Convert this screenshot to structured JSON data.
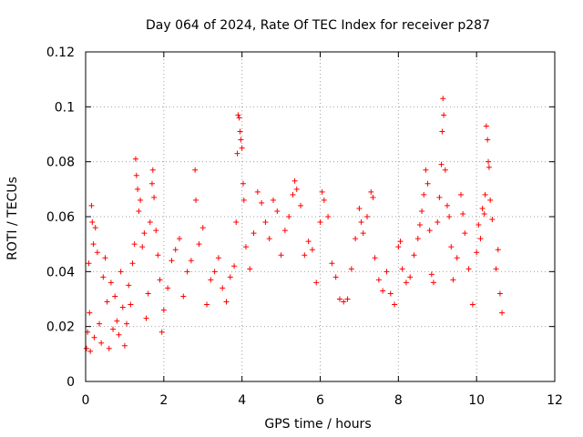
{
  "chart_data": {
    "type": "scatter",
    "title": "Day 064 of 2024, Rate Of TEC Index for receiver p287",
    "xlabel": "GPS time / hours",
    "ylabel": "ROTI / TECUs",
    "xlim": [
      0,
      12
    ],
    "ylim": [
      0,
      0.12
    ],
    "x_ticks": [
      0,
      2,
      4,
      6,
      8,
      10,
      12
    ],
    "y_ticks": [
      0,
      0.02,
      0.04,
      0.06,
      0.08,
      0.1,
      0.12
    ],
    "x_tick_labels": [
      "0",
      "2",
      "4",
      "6",
      "8",
      "10",
      "12"
    ],
    "y_tick_labels": [
      "0",
      "0.02",
      "0.04",
      "0.06",
      "0.08",
      "0.1",
      "0.12"
    ],
    "grid": true,
    "marker": "+",
    "color": "#ff0000",
    "series": [
      {
        "name": "ROTI",
        "points": [
          [
            0.02,
            0.012
          ],
          [
            0.05,
            0.018
          ],
          [
            0.08,
            0.043
          ],
          [
            0.1,
            0.025
          ],
          [
            0.12,
            0.011
          ],
          [
            0.15,
            0.064
          ],
          [
            0.17,
            0.058
          ],
          [
            0.2,
            0.05
          ],
          [
            0.22,
            0.016
          ],
          [
            0.25,
            0.056
          ],
          [
            0.3,
            0.047
          ],
          [
            0.35,
            0.021
          ],
          [
            0.4,
            0.014
          ],
          [
            0.45,
            0.038
          ],
          [
            0.5,
            0.045
          ],
          [
            0.55,
            0.029
          ],
          [
            0.6,
            0.012
          ],
          [
            0.65,
            0.036
          ],
          [
            0.7,
            0.019
          ],
          [
            0.75,
            0.031
          ],
          [
            0.8,
            0.022
          ],
          [
            0.85,
            0.017
          ],
          [
            0.9,
            0.04
          ],
          [
            0.95,
            0.027
          ],
          [
            1.0,
            0.013
          ],
          [
            1.05,
            0.021
          ],
          [
            1.1,
            0.035
          ],
          [
            1.15,
            0.028
          ],
          [
            1.2,
            0.043
          ],
          [
            1.25,
            0.05
          ],
          [
            1.28,
            0.081
          ],
          [
            1.3,
            0.075
          ],
          [
            1.33,
            0.07
          ],
          [
            1.36,
            0.062
          ],
          [
            1.4,
            0.066
          ],
          [
            1.45,
            0.049
          ],
          [
            1.5,
            0.054
          ],
          [
            1.55,
            0.023
          ],
          [
            1.6,
            0.032
          ],
          [
            1.65,
            0.058
          ],
          [
            1.7,
            0.072
          ],
          [
            1.72,
            0.077
          ],
          [
            1.75,
            0.067
          ],
          [
            1.8,
            0.055
          ],
          [
            1.85,
            0.046
          ],
          [
            1.9,
            0.037
          ],
          [
            1.95,
            0.018
          ],
          [
            2.0,
            0.026
          ],
          [
            2.1,
            0.034
          ],
          [
            2.2,
            0.044
          ],
          [
            2.3,
            0.048
          ],
          [
            2.4,
            0.052
          ],
          [
            2.5,
            0.031
          ],
          [
            2.6,
            0.04
          ],
          [
            2.7,
            0.044
          ],
          [
            2.8,
            0.077
          ],
          [
            2.82,
            0.066
          ],
          [
            2.9,
            0.05
          ],
          [
            3.0,
            0.056
          ],
          [
            3.1,
            0.028
          ],
          [
            3.2,
            0.037
          ],
          [
            3.3,
            0.04
          ],
          [
            3.4,
            0.045
          ],
          [
            3.5,
            0.034
          ],
          [
            3.6,
            0.029
          ],
          [
            3.7,
            0.038
          ],
          [
            3.8,
            0.042
          ],
          [
            3.85,
            0.058
          ],
          [
            3.88,
            0.083
          ],
          [
            3.9,
            0.097
          ],
          [
            3.93,
            0.096
          ],
          [
            3.95,
            0.091
          ],
          [
            3.97,
            0.088
          ],
          [
            4.0,
            0.085
          ],
          [
            4.03,
            0.072
          ],
          [
            4.05,
            0.066
          ],
          [
            4.1,
            0.049
          ],
          [
            4.2,
            0.041
          ],
          [
            4.3,
            0.054
          ],
          [
            4.4,
            0.069
          ],
          [
            4.5,
            0.065
          ],
          [
            4.6,
            0.058
          ],
          [
            4.7,
            0.052
          ],
          [
            4.8,
            0.066
          ],
          [
            4.9,
            0.062
          ],
          [
            5.0,
            0.046
          ],
          [
            5.1,
            0.055
          ],
          [
            5.2,
            0.06
          ],
          [
            5.3,
            0.068
          ],
          [
            5.35,
            0.073
          ],
          [
            5.4,
            0.07
          ],
          [
            5.5,
            0.064
          ],
          [
            5.6,
            0.046
          ],
          [
            5.7,
            0.051
          ],
          [
            5.8,
            0.048
          ],
          [
            5.9,
            0.036
          ],
          [
            6.0,
            0.058
          ],
          [
            6.05,
            0.069
          ],
          [
            6.1,
            0.066
          ],
          [
            6.2,
            0.06
          ],
          [
            6.3,
            0.043
          ],
          [
            6.4,
            0.038
          ],
          [
            6.5,
            0.03
          ],
          [
            6.6,
            0.029
          ],
          [
            6.7,
            0.03
          ],
          [
            6.8,
            0.041
          ],
          [
            6.9,
            0.052
          ],
          [
            7.0,
            0.063
          ],
          [
            7.05,
            0.058
          ],
          [
            7.1,
            0.054
          ],
          [
            7.2,
            0.06
          ],
          [
            7.3,
            0.069
          ],
          [
            7.35,
            0.067
          ],
          [
            7.4,
            0.045
          ],
          [
            7.5,
            0.037
          ],
          [
            7.6,
            0.033
          ],
          [
            7.7,
            0.04
          ],
          [
            7.8,
            0.032
          ],
          [
            7.9,
            0.028
          ],
          [
            8.0,
            0.049
          ],
          [
            8.05,
            0.051
          ],
          [
            8.1,
            0.041
          ],
          [
            8.2,
            0.036
          ],
          [
            8.3,
            0.038
          ],
          [
            8.4,
            0.046
          ],
          [
            8.5,
            0.052
          ],
          [
            8.55,
            0.057
          ],
          [
            8.6,
            0.062
          ],
          [
            8.65,
            0.068
          ],
          [
            8.7,
            0.077
          ],
          [
            8.75,
            0.072
          ],
          [
            8.8,
            0.055
          ],
          [
            8.85,
            0.039
          ],
          [
            8.9,
            0.036
          ],
          [
            9.0,
            0.058
          ],
          [
            9.05,
            0.067
          ],
          [
            9.1,
            0.079
          ],
          [
            9.12,
            0.091
          ],
          [
            9.14,
            0.103
          ],
          [
            9.16,
            0.097
          ],
          [
            9.2,
            0.077
          ],
          [
            9.25,
            0.064
          ],
          [
            9.3,
            0.06
          ],
          [
            9.35,
            0.049
          ],
          [
            9.4,
            0.037
          ],
          [
            9.5,
            0.045
          ],
          [
            9.6,
            0.068
          ],
          [
            9.65,
            0.061
          ],
          [
            9.7,
            0.054
          ],
          [
            9.8,
            0.041
          ],
          [
            9.9,
            0.028
          ],
          [
            10.0,
            0.047
          ],
          [
            10.05,
            0.057
          ],
          [
            10.1,
            0.052
          ],
          [
            10.15,
            0.063
          ],
          [
            10.2,
            0.061
          ],
          [
            10.22,
            0.068
          ],
          [
            10.25,
            0.093
          ],
          [
            10.28,
            0.088
          ],
          [
            10.3,
            0.08
          ],
          [
            10.32,
            0.078
          ],
          [
            10.35,
            0.066
          ],
          [
            10.4,
            0.059
          ],
          [
            10.5,
            0.041
          ],
          [
            10.55,
            0.048
          ],
          [
            10.6,
            0.032
          ],
          [
            10.65,
            0.025
          ]
        ]
      }
    ]
  }
}
